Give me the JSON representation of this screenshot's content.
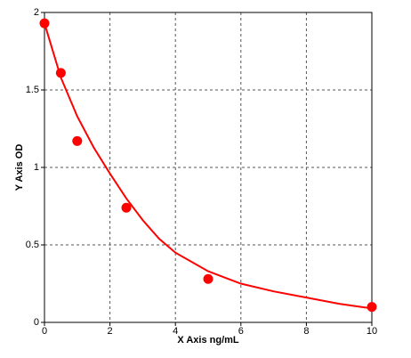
{
  "chart_data": {
    "type": "scatter",
    "x_label": "X Axis ng/mL",
    "y_label": "Y Axis OD",
    "xlim": [
      0,
      10
    ],
    "ylim": [
      0,
      2
    ],
    "xticks": [
      0,
      2,
      4,
      6,
      8,
      10
    ],
    "yticks": [
      0,
      0.5,
      1,
      1.5,
      2
    ],
    "grid": true,
    "series": [
      {
        "type": "scatter",
        "color": "#ff0000",
        "x": [
          0,
          0.5,
          1,
          2.5,
          5,
          10
        ],
        "values": [
          1.93,
          1.61,
          1.17,
          0.74,
          0.28,
          0.1
        ]
      },
      {
        "type": "line",
        "color": "#ff0000",
        "x": [
          0,
          0.5,
          1,
          1.5,
          2,
          2.5,
          3,
          3.5,
          4,
          5,
          6,
          7,
          8,
          9,
          10
        ],
        "values": [
          1.93,
          1.58,
          1.33,
          1.13,
          0.96,
          0.8,
          0.66,
          0.54,
          0.45,
          0.33,
          0.25,
          0.2,
          0.16,
          0.12,
          0.09
        ]
      }
    ]
  }
}
